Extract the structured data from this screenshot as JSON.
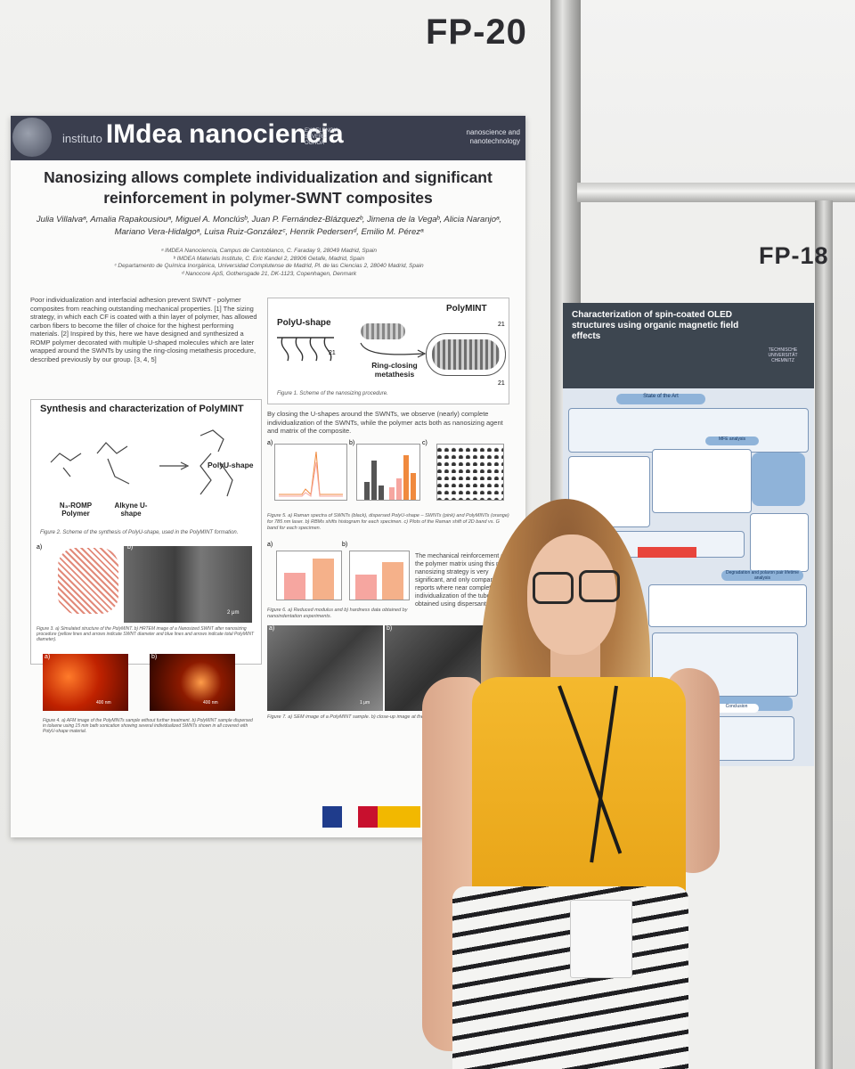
{
  "booth": {
    "left_label": "FP-20",
    "right_label": "FP-18"
  },
  "poster": {
    "header": {
      "institute": "instituto",
      "brand": "IMdea nanociencia",
      "excellence": "EXCELENCIA SEVERO OCHOA",
      "tagline": "nanoscience and nanotechnology"
    },
    "title": "Nanosizing allows complete individualization and significant reinforcement in polymer-SWNT composites",
    "authors": "Julia Villalvaᵃ, Amalia Rapakousiouᵃ, Miguel A. Monclúsᵇ, Juan P. Fernández-Blázquezᵇ, Jimena de la Vegaᵇ, Alicia Naranjoᵃ, Mariano Vera-Hidalgoᵃ, Luisa Ruiz-Gonzálezᶜ, Henrik Pedersenᵈ, Emilio M. Pérezᵃ",
    "affiliations": [
      "ᵃ IMDEA Nanociencia, Campus de Cantoblanco, C. Faraday 9, 28049 Madrid, Spain",
      "ᵇ IMDEA Materials Institute, C. Eric Kandel 2, 28906 Getafe, Madrid, Spain",
      "ᶜ Departamento de Química Inorgánica, Universidad Complutense de Madrid, Pl. de las Ciencias 2, 28040 Madrid, Spain",
      "ᵈ Nanocore ApS, Gothersgade 21, DK-1123, Copenhagen, Denmark"
    ],
    "intro": "Poor individualization and interfacial adhesion prevent SWNT - polymer composites from reaching outstanding mechanical properties. [1] The sizing strategy, in which each CF is coated with a thin layer of polymer, has allowed carbon fibers to become the filler of choice for the highest performing materials. [2] Inspired by this, here we have designed and synthesized a ROMP polymer decorated with multiple U-shaped molecules which are later wrapped around the SWNTs by using the ring-closing metathesis procedure, described previously by our group. [3, 4, 5]",
    "scheme": {
      "left": "PolyU-shape",
      "right": "PolyMINT",
      "arrow": "Ring-closing metathesis",
      "sub": "21",
      "caption": "Figure 1. Scheme of the nanosizing procedure."
    },
    "synthesis": {
      "title": "Synthesis and characterization of PolyMINT",
      "n3": "N₃-ROMP Polymer",
      "alkyne": "Alkyne U-shape",
      "polyu": "PolyU-shape",
      "fig2": "Figure 2. Scheme of the synthesis of PolyU-shape, used in the PolyMINT formation.",
      "fig3_scale": "2 μm",
      "fig3": "Figure 3. a) Simulated structure of the PolyMINT. b) HRTEM image of a Nanosized SWNT after nanosizing procedure (yellow lines and arrows indicate SWNT diameter and blue lines and arrows indicate total PolyMINT diameter).",
      "fig4_scale_a": "400 nm",
      "fig4_scale_b": "400 nm",
      "fig4": "Figure 4. a) AFM image of the PolyMINTs sample without further treatment. b) PolyMINT sample dispersed in toluene using 15 min bath sonication showing several individualized SWNTs shown in all covered with PolyU-shape material."
    },
    "results_text": "By closing the U-shapes around the SWNTs, we observe (nearly) complete individualization of the SWNTs, while the polymer acts both as nanosizing agent and matrix of the composite.",
    "fig5": "Figure 5. a) Raman spectra of SWNTs (black), dispersed PolyU-shape – SWNTs (pink) and PolyMINTs (orange) for 785 nm laser. b) RBMs shifts histogram for each specimen. c) Plots of the Raman shift of 2D band vs. G band for each specimen.",
    "mechanical_text": "The mechanical reinforcement of the polymer matrix using this novel nanosizing strategy is very significant, and only comparable to reports where near complete individualization of the tubes was obtained using dispersants.",
    "fig6": "Figure 6. a) Reduced modulus and b) hardness data obtained by nanoindentation experiments.",
    "fig7_scale": "1 μm",
    "fig7": "Figure 7. a) SEM image of a PolyMINT sample. b) close-up image at the fi...",
    "panel_labels": [
      "a)",
      "b)",
      "c)"
    ]
  },
  "poster2": {
    "title": "Characterization of spin-coated OLED structures using organic magnetic field effects",
    "university": "TECHNISCHE UNIVERSITÄT CHEMNITZ",
    "section_state": "State of the Art",
    "section_mfe": "MFE analysis",
    "section_degr": "Degradation and polaron pair lifetime analysis",
    "section_concl": "Conclusion"
  },
  "colors": {
    "poster_header": "#3a3e4e",
    "pink_series": "#f6a6a0",
    "orange_series": "#f08a3e",
    "shirt": "#f0b02a"
  }
}
